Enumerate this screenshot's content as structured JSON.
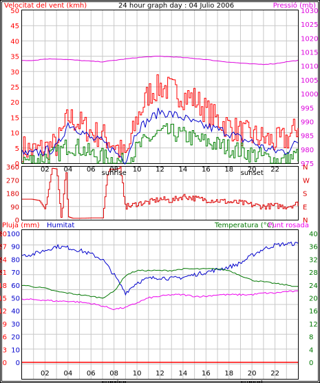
{
  "colors": {
    "wind": "#ff0000",
    "avg": "#0000cc",
    "gust": "#008000",
    "pressure": "#dd00dd",
    "direction": "#dd0000",
    "humidity": "#0000cc",
    "temperature": "#007700",
    "dewpoint": "#ee00ee",
    "rain": "#ff0000",
    "grid": "#c8c8c8",
    "axis": "#000000"
  },
  "chart_data": [
    {
      "type": "line",
      "title": "24 hour graph day : 04 Julio 2006",
      "ylabel": "Velocitat del vent (kmh)",
      "y2label": "Pressió (mb)",
      "ylim": [
        0,
        50
      ],
      "y2lim": [
        975,
        1030
      ],
      "yticks": [
        "0",
        "5",
        "10",
        "15",
        "20",
        "25",
        "30",
        "35",
        "40",
        "45",
        "50"
      ],
      "y2ticks": [
        "975",
        "980",
        "985",
        "990",
        "995",
        "1000",
        "1005",
        "1010",
        "1015",
        "1020",
        "1025",
        "1030"
      ],
      "xticks": [
        "02",
        "04",
        "06",
        "08",
        "10",
        "12",
        "14",
        "16",
        "18",
        "20",
        "22"
      ],
      "sunrise_label": "sunrise",
      "sunset_label": "sunset",
      "sunrise_hour": 8,
      "sunset_hour": 20,
      "x": [
        0,
        1,
        2,
        3,
        4,
        5,
        6,
        7,
        8,
        9,
        10,
        11,
        12,
        13,
        14,
        15,
        16,
        17,
        18,
        19,
        20,
        21,
        22,
        23,
        24
      ],
      "series": [
        {
          "name": "wind",
          "values": [
            5,
            4,
            5,
            6,
            15,
            13,
            10,
            9,
            6,
            2,
            15,
            23,
            25,
            24,
            22,
            21,
            17,
            14,
            12,
            10,
            9,
            8,
            7,
            8,
            12
          ]
        },
        {
          "name": "avg",
          "values": [
            3,
            3,
            4,
            5,
            13,
            11,
            8,
            7,
            4,
            1,
            11,
            14,
            17,
            16,
            15,
            13,
            12,
            11,
            10,
            8,
            7,
            5,
            4,
            4,
            7
          ]
        },
        {
          "name": "gust",
          "values": [
            1,
            1,
            2,
            3,
            6,
            5,
            3,
            2,
            1,
            0,
            5,
            8,
            10,
            10,
            9,
            8,
            7,
            6,
            5,
            4,
            3,
            2,
            1,
            1,
            3
          ]
        },
        {
          "name": "pressure",
          "values": [
            1012,
            1012,
            1012.5,
            1012.5,
            1012.3,
            1012,
            1011.7,
            1011.5,
            1012,
            1012.5,
            1013,
            1013.3,
            1013.5,
            1013.3,
            1013,
            1012.7,
            1012.3,
            1011.8,
            1011.4,
            1011,
            1010.7,
            1010.6,
            1010.8,
            1011.5,
            1012
          ]
        }
      ]
    },
    {
      "type": "line",
      "yticks_deg": [
        "0",
        "90",
        "180",
        "270",
        "360"
      ],
      "yticks_dir": [
        "N",
        "E",
        "S",
        "W",
        "N"
      ],
      "ylim": [
        0,
        360
      ],
      "x": [
        0,
        0.8,
        1.5,
        2.0,
        2.6,
        3.0,
        3.4,
        3.8,
        4.0,
        4.4,
        5,
        6,
        7,
        7.4,
        7.6,
        8,
        8.5,
        9,
        9.5,
        10,
        11,
        12,
        13,
        14,
        15,
        16,
        17,
        18,
        19,
        20,
        21,
        22,
        23,
        24
      ],
      "series": [
        {
          "name": "direction",
          "values": [
            140,
            140,
            130,
            70,
            350,
            345,
            0,
            350,
            20,
            10,
            10,
            12,
            12,
            300,
            345,
            340,
            350,
            90,
            95,
            110,
            120,
            140,
            130,
            160,
            145,
            135,
            130,
            120,
            115,
            100,
            90,
            95,
            90,
            110
          ]
        }
      ]
    },
    {
      "type": "line",
      "ylabel_rain": "Pluja (mm)",
      "ylabel_hum": "Humitat",
      "y2label_temp": "Temperatura (°C)",
      "y2label_dew": "Punt rosada",
      "rain_ticks": [
        "0",
        "3",
        "6",
        "9",
        "12",
        "15",
        "18",
        "21",
        "24",
        "27",
        "30"
      ],
      "hum_ticks": [
        "0",
        "10",
        "20",
        "30",
        "40",
        "50",
        "60",
        "70",
        "80",
        "90",
        "100"
      ],
      "temp_ticks": [
        "0",
        "4",
        "8",
        "12",
        "16",
        "20",
        "24",
        "28",
        "32",
        "36",
        "40"
      ],
      "temp_ylim": [
        0,
        40
      ],
      "hum_ylim": [
        0,
        100
      ],
      "x": [
        0,
        1,
        2,
        3,
        4,
        5,
        6,
        7,
        8,
        9,
        10,
        11,
        12,
        13,
        14,
        15,
        16,
        17,
        18,
        19,
        20,
        21,
        22,
        23,
        24
      ],
      "series": [
        {
          "name": "humidity",
          "values": [
            83,
            84,
            87,
            90,
            89,
            87,
            84,
            80,
            68,
            54,
            62,
            65,
            66,
            65,
            66,
            68,
            70,
            72,
            74,
            77,
            83,
            88,
            91,
            92,
            92
          ]
        },
        {
          "name": "temperature",
          "values": [
            24,
            23.5,
            23,
            22,
            21.5,
            21,
            20.5,
            20,
            22,
            27,
            28.5,
            28.5,
            28.5,
            28.5,
            29,
            29,
            29,
            29,
            28.5,
            27,
            25.5,
            25,
            24.5,
            24,
            23.5
          ]
        },
        {
          "name": "dewpoint",
          "values": [
            19.5,
            19.5,
            19.3,
            19,
            19,
            18.7,
            18.3,
            17.5,
            16.5,
            17,
            18.5,
            20,
            20.5,
            21,
            21,
            20.5,
            20.5,
            21,
            21,
            21,
            21,
            21.5,
            21.5,
            22,
            22
          ]
        },
        {
          "name": "rain",
          "values": [
            0,
            0,
            0,
            0,
            0,
            0,
            0,
            0,
            0,
            0,
            0,
            0,
            0,
            0,
            0,
            0,
            0,
            0,
            0,
            0,
            0,
            0,
            0,
            0,
            0
          ]
        }
      ]
    }
  ]
}
